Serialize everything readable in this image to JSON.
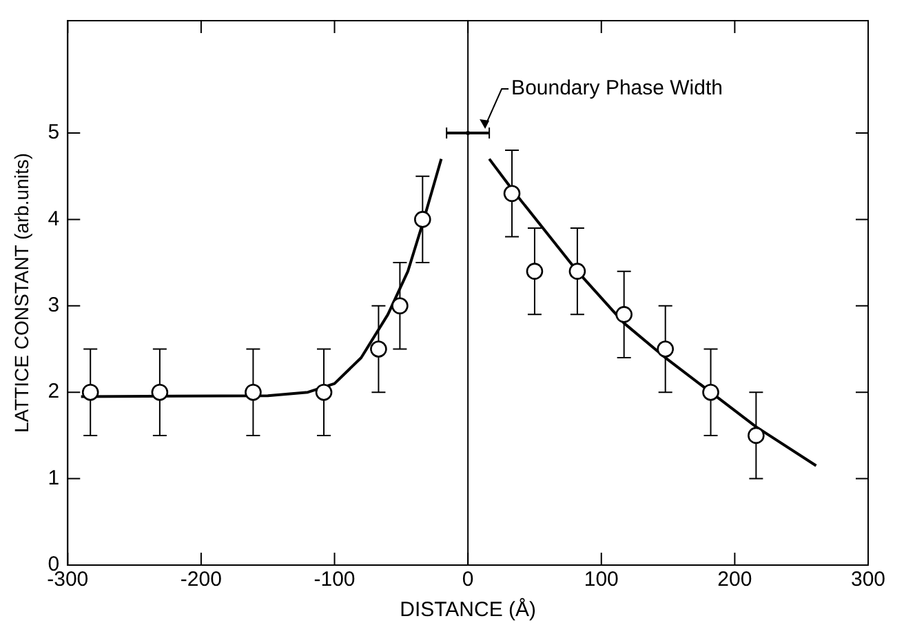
{
  "chart_data": {
    "type": "scatter",
    "xlabel": "DISTANCE (Å)",
    "ylabel": "LATTICE CONSTANT (arb.units)",
    "xlim": [
      -300,
      300
    ],
    "xticks": [
      -300,
      -200,
      -100,
      0,
      100,
      200,
      300
    ],
    "ylim": [
      0,
      6.3
    ],
    "yticks": [
      0,
      1,
      2,
      3,
      4,
      5
    ],
    "grid": false,
    "legend": false,
    "series": [
      {
        "color": "#000000",
        "marker": "circle",
        "x": [
          -283,
          -231,
          -161,
          -108,
          -67,
          -51,
          -34,
          33,
          50,
          82,
          117,
          148,
          182,
          216
        ],
        "values": [
          2,
          2,
          2,
          2,
          2.5,
          3,
          4,
          4.3,
          3.4,
          3.4,
          2.9,
          2.5,
          2,
          1.5
        ],
        "errors": [
          0.5,
          0.5,
          0.5,
          0.5,
          0.5,
          0.5,
          0.5,
          0.5,
          0.5,
          0.5,
          0.5,
          0.5,
          0.5,
          0.5
        ]
      },
      {
        "type": "line",
        "color": "#000000",
        "marker": "none",
        "line_style": "solid",
        "x": [
          -290,
          -150,
          -120,
          -100,
          -80,
          -60,
          -45,
          -34,
          -20
        ],
        "values": [
          1.95,
          1.96,
          2.0,
          2.1,
          2.4,
          2.9,
          3.4,
          3.95,
          4.7
        ]
      },
      {
        "type": "line",
        "color": "#000000",
        "marker": "none",
        "line_style": "solid",
        "x": [
          16,
          33,
          82,
          117,
          148,
          182,
          216,
          261
        ],
        "values": [
          4.7,
          4.35,
          3.4,
          2.8,
          2.4,
          2.0,
          1.6,
          1.15
        ]
      },
      {
        "color": "#000000",
        "x": [
          0
        ],
        "values": [
          5
        ],
        "xerrors": [
          16
        ]
      }
    ],
    "ref_lines": [
      {
        "axis": "x",
        "value": 0,
        "color": "#000000",
        "line_style": "solid"
      }
    ],
    "annotations": [
      {
        "text": "Boundary Phase Width",
        "x": 16,
        "y": 5
      }
    ]
  }
}
